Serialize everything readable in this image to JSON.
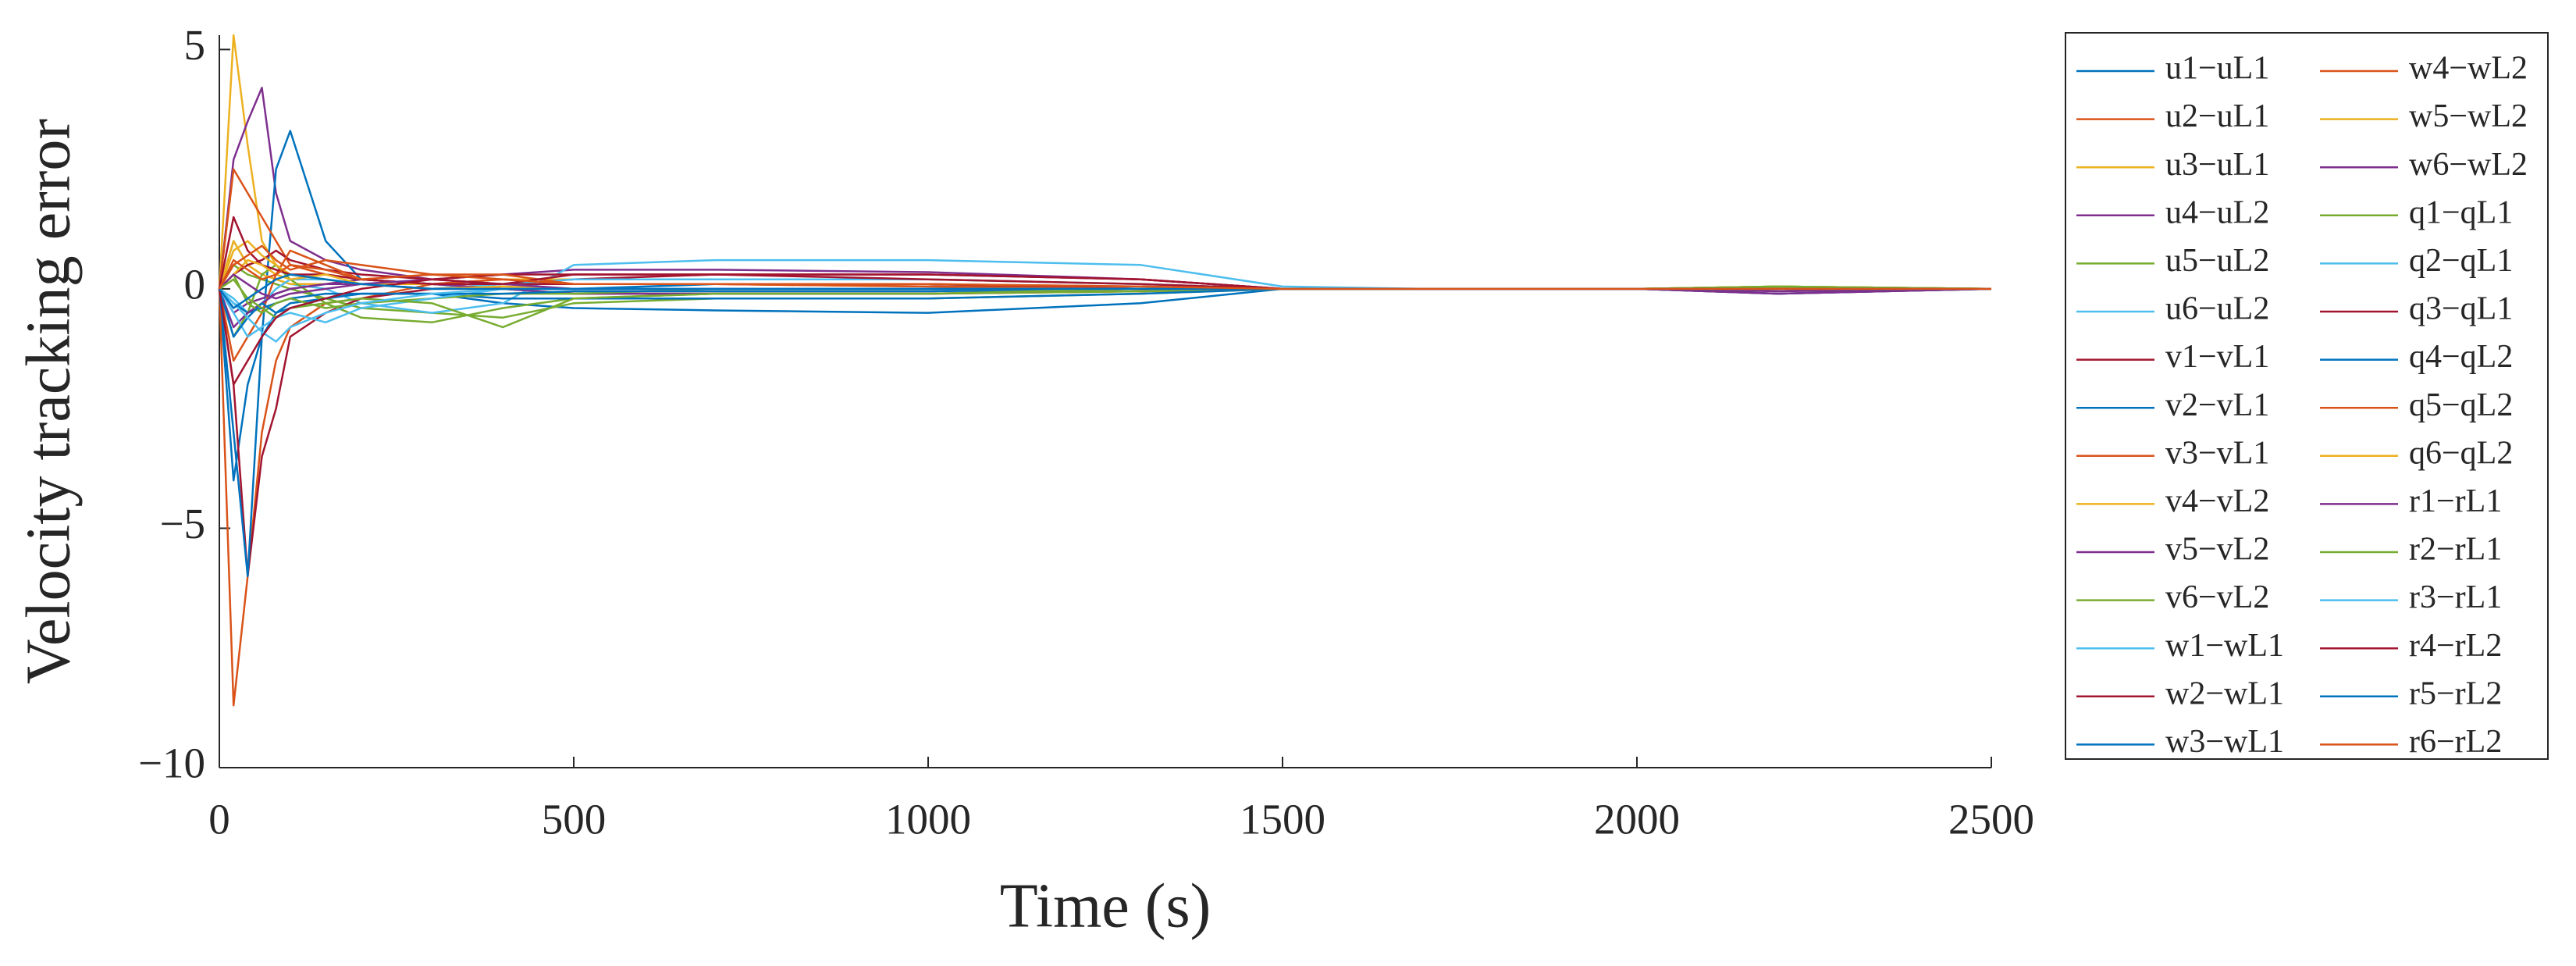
{
  "chart_data": {
    "type": "line",
    "xlabel": "Time (s)",
    "ylabel": "Velocity tracking error",
    "xlim": [
      0,
      2500
    ],
    "xticks": [
      0,
      500,
      1000,
      1500,
      2000,
      2500
    ],
    "ylim": [
      -10,
      5.3
    ],
    "yticks": [
      {
        "value": -10,
        "label": "−10"
      },
      {
        "value": -5,
        "label": "−5"
      },
      0,
      5
    ],
    "grid": false,
    "legend_position": "right",
    "x": [
      0,
      20,
      40,
      60,
      80,
      100,
      150,
      200,
      300,
      400,
      500,
      700,
      1000,
      1300,
      1500,
      1700,
      2000,
      2200,
      2500
    ],
    "series": [
      {
        "name": "u1−uL1",
        "color": "#0072BD",
        "values": [
          0,
          -4,
          -2,
          -1,
          -0.5,
          -0.3,
          -0.2,
          -0.1,
          -0.1,
          -0.3,
          -0.4,
          -0.45,
          -0.5,
          -0.3,
          0,
          0,
          0,
          0,
          0
        ]
      },
      {
        "name": "u2−uL1",
        "color": "#D95319",
        "values": [
          0,
          -8.7,
          -6,
          -3,
          -1.5,
          -0.8,
          -0.3,
          -0.2,
          0.1,
          0.2,
          0.1,
          0.1,
          0.1,
          0.05,
          0,
          0,
          0,
          0,
          0
        ]
      },
      {
        "name": "u3−uL1",
        "color": "#EDB120",
        "values": [
          0,
          5.3,
          3,
          1,
          0.5,
          0.3,
          0.2,
          0.1,
          0,
          0,
          -0.1,
          -0.1,
          -0.1,
          -0.05,
          0,
          0,
          0,
          0.05,
          0
        ]
      },
      {
        "name": "u4−uL2",
        "color": "#7E2F8E",
        "values": [
          0,
          2.7,
          3.5,
          4.2,
          2,
          1,
          0.6,
          0.4,
          0.2,
          0.3,
          0.4,
          0.4,
          0.35,
          0.2,
          0,
          0,
          0,
          -0.05,
          0
        ]
      },
      {
        "name": "u5−uL2",
        "color": "#77AC30",
        "values": [
          0,
          0.5,
          0.3,
          0.2,
          0.1,
          0,
          -0.2,
          -0.4,
          -0.5,
          -0.6,
          -0.3,
          -0.2,
          -0.2,
          -0.1,
          0,
          0,
          0,
          0.05,
          0
        ]
      },
      {
        "name": "u6−uL2",
        "color": "#4DBEEE",
        "values": [
          0,
          1,
          0.5,
          0.3,
          0.2,
          0.1,
          0,
          -0.3,
          -0.5,
          -0.3,
          0.5,
          0.6,
          0.6,
          0.5,
          0.05,
          0,
          0,
          0,
          0
        ]
      },
      {
        "name": "v1−vL1",
        "color": "#A2142F",
        "values": [
          0,
          -2,
          -6,
          -3.5,
          -2.5,
          -1,
          -0.5,
          -0.2,
          0,
          0.1,
          0.2,
          0.3,
          0.3,
          0.2,
          0,
          0,
          0,
          0,
          0
        ]
      },
      {
        "name": "v2−vL1",
        "color": "#0072BD",
        "values": [
          0,
          -3,
          -6,
          -1,
          2.5,
          3.3,
          1,
          0.2,
          0.1,
          0,
          0,
          0.1,
          0.1,
          0,
          0,
          0,
          0,
          0,
          0
        ]
      },
      {
        "name": "v3−vL1",
        "color": "#D95319",
        "values": [
          0,
          2.5,
          2,
          1.5,
          1,
          0.5,
          0.3,
          0.2,
          0.1,
          0,
          -0.1,
          -0.1,
          -0.1,
          -0.05,
          0,
          0,
          0,
          0,
          0
        ]
      },
      {
        "name": "v4−vL2",
        "color": "#EDB120",
        "values": [
          0,
          1,
          0.5,
          0.3,
          0.2,
          0.1,
          0.1,
          0.2,
          0.3,
          0.2,
          0.2,
          0.2,
          0.2,
          0.1,
          0,
          0,
          0,
          0,
          0
        ]
      },
      {
        "name": "v5−vL2",
        "color": "#7E2F8E",
        "values": [
          0,
          -0.5,
          -0.3,
          -0.2,
          -0.1,
          0,
          0.1,
          0.1,
          0,
          0,
          0,
          0,
          0,
          0,
          0,
          0,
          0,
          0,
          0
        ]
      },
      {
        "name": "v6−vL2",
        "color": "#77AC30",
        "values": [
          0,
          -1,
          -0.5,
          0.3,
          0.5,
          0.2,
          -0.3,
          -0.6,
          -0.7,
          -0.4,
          -0.2,
          -0.1,
          -0.1,
          -0.05,
          0,
          0,
          0,
          0.05,
          0
        ]
      },
      {
        "name": "w1−wL1",
        "color": "#4DBEEE",
        "values": [
          0,
          -0.2,
          -0.5,
          -0.3,
          0,
          0.2,
          0.2,
          0.1,
          0,
          0.1,
          0.2,
          0.2,
          0.2,
          0.1,
          0,
          0,
          0,
          0,
          0
        ]
      },
      {
        "name": "w2−wL1",
        "color": "#A2142F",
        "values": [
          0,
          0.3,
          0.5,
          0.6,
          0.8,
          0.6,
          0.4,
          0.3,
          0.2,
          0.3,
          0.3,
          0.3,
          0.2,
          0.1,
          0,
          0,
          0,
          -0.1,
          0
        ]
      },
      {
        "name": "w3−wL1",
        "color": "#0072BD",
        "values": [
          0,
          -0.3,
          -0.5,
          -0.4,
          -0.3,
          -0.2,
          -0.1,
          -0.1,
          -0.1,
          -0.2,
          -0.2,
          -0.2,
          -0.2,
          -0.1,
          0,
          0,
          0,
          -0.1,
          0
        ]
      },
      {
        "name": "w4−wL2",
        "color": "#D95319",
        "values": [
          0,
          -1.5,
          -1,
          -0.5,
          0.3,
          0.8,
          0.5,
          0.2,
          0.1,
          0.2,
          0.1,
          0.1,
          0.05,
          0,
          0,
          0,
          0,
          0,
          0
        ]
      },
      {
        "name": "w5−wL2",
        "color": "#EDB120",
        "values": [
          0,
          0.8,
          1,
          0.7,
          0.5,
          0.3,
          0.2,
          0.1,
          0.1,
          0,
          0,
          0,
          0,
          0,
          0,
          0,
          0,
          0,
          0
        ]
      },
      {
        "name": "w6−wL2",
        "color": "#7E2F8E",
        "values": [
          0,
          -0.8,
          -0.5,
          -0.3,
          -0.1,
          0,
          0.1,
          0.2,
          0.1,
          0,
          -0.1,
          -0.1,
          -0.1,
          0,
          0,
          0,
          0,
          0,
          0
        ]
      },
      {
        "name": "q1−qL1",
        "color": "#77AC30",
        "values": [
          0,
          0.3,
          -0.3,
          -0.5,
          -0.3,
          -0.2,
          -0.4,
          -0.3,
          -0.2,
          -0.1,
          -0.1,
          0,
          0,
          0,
          0,
          0,
          0,
          0.05,
          0
        ]
      },
      {
        "name": "q2−qL1",
        "color": "#4DBEEE",
        "values": [
          0,
          -0.5,
          -1,
          -0.8,
          -0.6,
          -0.5,
          -0.7,
          -0.4,
          -0.2,
          0,
          0,
          0,
          0,
          0,
          0,
          0,
          0,
          0,
          0
        ]
      },
      {
        "name": "q3−qL1",
        "color": "#A2142F",
        "values": [
          0,
          1.5,
          0.8,
          0.5,
          0.4,
          0.3,
          0.3,
          0.2,
          0.1,
          0.1,
          0.1,
          0.1,
          0.1,
          0,
          0,
          0,
          0,
          0,
          0
        ]
      },
      {
        "name": "q4−qL2",
        "color": "#0072BD",
        "values": [
          0,
          -1,
          -0.6,
          -0.3,
          -0.5,
          -0.4,
          -0.2,
          -0.1,
          -0.1,
          -0.1,
          -0.05,
          -0.05,
          -0.05,
          0,
          0,
          0,
          0,
          0,
          0
        ]
      },
      {
        "name": "q5−qL2",
        "color": "#D95319",
        "values": [
          0,
          0.5,
          0.7,
          0.9,
          0.6,
          0.4,
          0.6,
          0.5,
          0.3,
          0.3,
          0.1,
          0.1,
          0.05,
          0,
          0,
          0,
          0,
          0,
          0
        ]
      },
      {
        "name": "q6−qL2",
        "color": "#EDB120",
        "values": [
          0,
          0.3,
          0.6,
          0.5,
          0.3,
          0.2,
          0.3,
          0.1,
          0,
          0.05,
          0,
          0,
          0,
          0,
          0,
          0,
          0,
          0.05,
          0
        ]
      },
      {
        "name": "r1−rL1",
        "color": "#7E2F8E",
        "values": [
          0,
          0.3,
          0.1,
          -0.1,
          -0.2,
          -0.1,
          0,
          0.1,
          0.2,
          0.1,
          0,
          0,
          0,
          0,
          0,
          0,
          0,
          -0.1,
          0
        ]
      },
      {
        "name": "r2−rL1",
        "color": "#77AC30",
        "values": [
          0,
          0.2,
          -0.2,
          -0.4,
          -0.6,
          -0.4,
          -0.3,
          -0.2,
          -0.3,
          -0.8,
          -0.2,
          -0.1,
          -0.1,
          0,
          0,
          0,
          0,
          0.05,
          0
        ]
      },
      {
        "name": "r3−rL1",
        "color": "#4DBEEE",
        "values": [
          0,
          -0.3,
          -0.6,
          -0.9,
          -1.1,
          -0.8,
          -0.5,
          -0.3,
          -0.1,
          0,
          0,
          0,
          0,
          0,
          0,
          0,
          0,
          0,
          0
        ]
      },
      {
        "name": "r4−rL2",
        "color": "#A2142F",
        "values": [
          0,
          -2,
          -1.5,
          -1,
          -0.6,
          -0.4,
          -0.2,
          0,
          0.2,
          0.1,
          0.3,
          0.3,
          0.3,
          0.2,
          0,
          0,
          0,
          0,
          0
        ]
      },
      {
        "name": "r5−rL2",
        "color": "#0072BD",
        "values": [
          0,
          -0.4,
          -0.2,
          0,
          0.2,
          0.3,
          0.2,
          0.1,
          0,
          0,
          0,
          0,
          0,
          0,
          0,
          0,
          0,
          0,
          0
        ]
      },
      {
        "name": "r6−rL2",
        "color": "#D95319",
        "values": [
          0,
          0.6,
          0.4,
          0.2,
          0.3,
          0.5,
          0.4,
          0.2,
          0.3,
          0.2,
          0.1,
          0.1,
          0.1,
          0.05,
          0,
          0,
          0,
          0,
          0
        ]
      }
    ]
  }
}
